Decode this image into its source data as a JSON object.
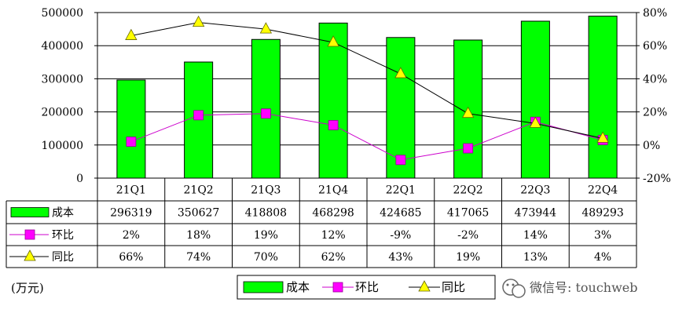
{
  "chart_data": {
    "type": "bar",
    "categories": [
      "21Q1",
      "21Q2",
      "21Q3",
      "21Q4",
      "22Q1",
      "22Q2",
      "22Q3",
      "22Q4"
    ],
    "series": [
      {
        "name": "成本",
        "type": "bar",
        "axis": "left",
        "values": [
          296319,
          350627,
          418808,
          468298,
          424685,
          417065,
          473944,
          489293
        ],
        "color": "#00ff00",
        "marker": "none"
      },
      {
        "name": "环比",
        "type": "line",
        "axis": "right",
        "values": [
          2,
          18,
          19,
          12,
          -9,
          -2,
          14,
          3
        ],
        "labels": [
          "2%",
          "18%",
          "19%",
          "12%",
          "-9%",
          "-2%",
          "14%",
          "3%"
        ],
        "color": "#cc00cc",
        "marker": "square",
        "marker_color": "#ff00ff"
      },
      {
        "name": "同比",
        "type": "line",
        "axis": "right",
        "values": [
          66,
          74,
          70,
          62,
          43,
          19,
          13,
          4
        ],
        "labels": [
          "66%",
          "74%",
          "70%",
          "62%",
          "43%",
          "19%",
          "13%",
          "4%"
        ],
        "color": "#000000",
        "marker": "triangle",
        "marker_color": "#ffff00"
      }
    ],
    "yaxis_left": {
      "min": 0,
      "max": 500000,
      "ticks": [
        "0",
        "100000",
        "200000",
        "300000",
        "400000",
        "500000"
      ]
    },
    "yaxis_right": {
      "min": -20,
      "max": 80,
      "ticks": [
        "-20%",
        "0%",
        "20%",
        "40%",
        "60%",
        "80%"
      ]
    },
    "unit_label": "(万元)",
    "grid": true,
    "legend": "bottom-center",
    "data_table": true
  },
  "watermark": {
    "text": "微信号: touchweb",
    "icon": "wechat-icon"
  }
}
